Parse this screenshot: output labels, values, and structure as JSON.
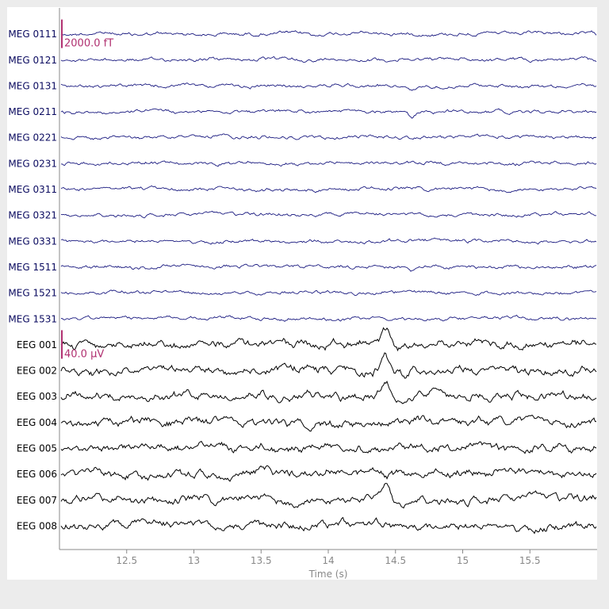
{
  "chart_data": {
    "type": "line",
    "xlabel": "Time (s)",
    "xlim": [
      12.0,
      16.0
    ],
    "x_ticks": [
      "12.5",
      "13",
      "13.5",
      "14",
      "14.5",
      "15",
      "15.5"
    ],
    "x_tick_values": [
      12.5,
      13.0,
      13.5,
      14.0,
      14.5,
      15.0,
      15.5
    ],
    "channels": [
      {
        "name": "MEG 0111",
        "kind": "meg"
      },
      {
        "name": "MEG 0121",
        "kind": "meg"
      },
      {
        "name": "MEG 0131",
        "kind": "meg"
      },
      {
        "name": "MEG 0211",
        "kind": "meg"
      },
      {
        "name": "MEG 0221",
        "kind": "meg"
      },
      {
        "name": "MEG 0231",
        "kind": "meg"
      },
      {
        "name": "MEG 0311",
        "kind": "meg"
      },
      {
        "name": "MEG 0321",
        "kind": "meg"
      },
      {
        "name": "MEG 0331",
        "kind": "meg"
      },
      {
        "name": "MEG 1511",
        "kind": "meg"
      },
      {
        "name": "MEG 1521",
        "kind": "meg"
      },
      {
        "name": "MEG 1531",
        "kind": "meg"
      },
      {
        "name": "EEG 001",
        "kind": "eeg"
      },
      {
        "name": "EEG 002",
        "kind": "eeg"
      },
      {
        "name": "EEG 003",
        "kind": "eeg"
      },
      {
        "name": "EEG 004",
        "kind": "eeg"
      },
      {
        "name": "EEG 005",
        "kind": "eeg"
      },
      {
        "name": "EEG 006",
        "kind": "eeg"
      },
      {
        "name": "EEG 007",
        "kind": "eeg"
      },
      {
        "name": "EEG 008",
        "kind": "eeg"
      }
    ],
    "scale_bars": [
      {
        "label": "2000.0 fT",
        "channel_index": 0
      },
      {
        "label": "40.0 µV",
        "channel_index": 12
      }
    ],
    "colors": {
      "meg_trace": "#1a1a80",
      "meg_label": "#0b0b60",
      "eeg_trace": "#000000",
      "eeg_label": "#000000",
      "scale_bar": "#b03070",
      "axis": "#888888",
      "tick_label": "#888888"
    },
    "grid": false
  }
}
